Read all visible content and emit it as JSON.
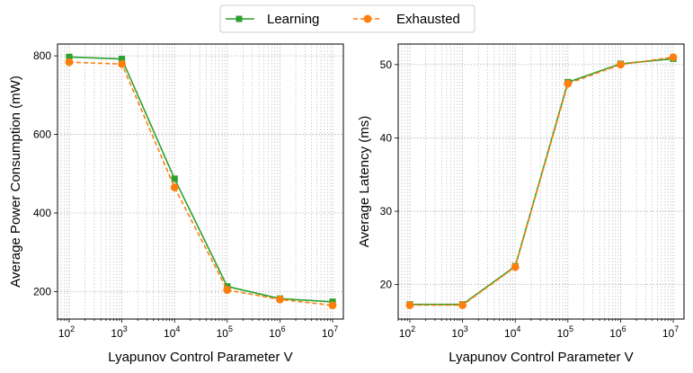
{
  "legend": {
    "items": [
      {
        "label": "Learning",
        "color": "#2ca02c",
        "marker": "square",
        "dash": "solid"
      },
      {
        "label": "Exhausted",
        "color": "#ff7f0e",
        "marker": "circle",
        "dash": "dashed"
      }
    ]
  },
  "chart_data": [
    {
      "type": "line",
      "xscale": "log",
      "xlabel": "Lyapunov Control Parameter V",
      "ylabel": "Average Power Consumption (mW)",
      "x": [
        100,
        1000,
        10000,
        100000,
        1000000,
        10000000
      ],
      "x_tick_exponents": [
        2,
        3,
        4,
        5,
        6,
        7
      ],
      "xlim": [
        60,
        16000000
      ],
      "ylim": [
        130,
        830
      ],
      "y_ticks": [
        200,
        400,
        600,
        800
      ],
      "grid": true,
      "series": [
        {
          "name": "Learning",
          "values": [
            797,
            792,
            487,
            213,
            182,
            174
          ]
        },
        {
          "name": "Exhausted",
          "values": [
            784,
            779,
            465,
            204,
            180,
            165
          ]
        }
      ]
    },
    {
      "type": "line",
      "xscale": "log",
      "xlabel": "Lyapunov Control Parameter V",
      "ylabel": "Average Latency (ms)",
      "x": [
        100,
        1000,
        10000,
        100000,
        1000000,
        10000000
      ],
      "x_tick_exponents": [
        2,
        3,
        4,
        5,
        6,
        7
      ],
      "xlim": [
        60,
        16000000
      ],
      "ylim": [
        15.3,
        52.8
      ],
      "y_ticks": [
        20,
        30,
        40,
        50
      ],
      "grid": true,
      "series": [
        {
          "name": "Learning",
          "values": [
            17.3,
            17.3,
            22.5,
            47.6,
            50.1,
            50.8
          ]
        },
        {
          "name": "Exhausted",
          "values": [
            17.2,
            17.2,
            22.4,
            47.4,
            50.0,
            51.0
          ]
        }
      ]
    }
  ]
}
